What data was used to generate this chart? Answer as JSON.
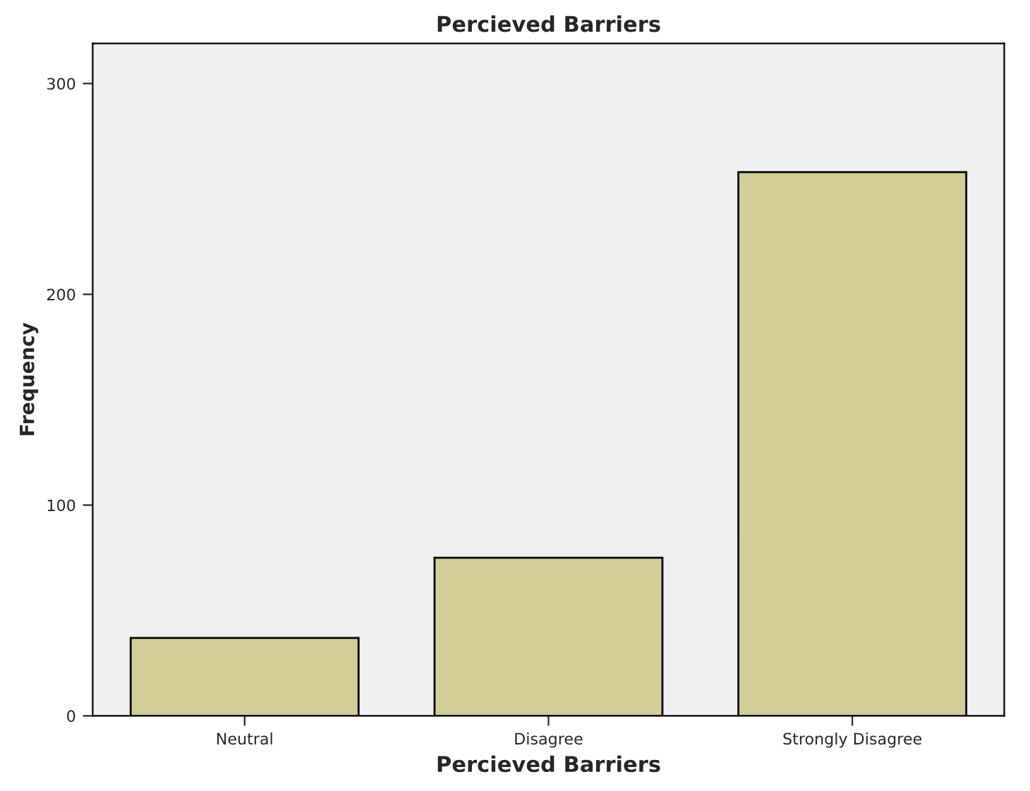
{
  "chart_data": {
    "type": "bar",
    "title": "Percieved Barriers",
    "xlabel": "Percieved Barriers",
    "ylabel": "Frequency",
    "categories": [
      "Neutral",
      "Disagree",
      "Strongly Disagree"
    ],
    "values": [
      37,
      75,
      258
    ],
    "color": "#d3ce97",
    "ylim": [
      0,
      319
    ],
    "yticks": [
      0,
      100,
      200,
      300
    ],
    "grid": false,
    "legend": false
  }
}
